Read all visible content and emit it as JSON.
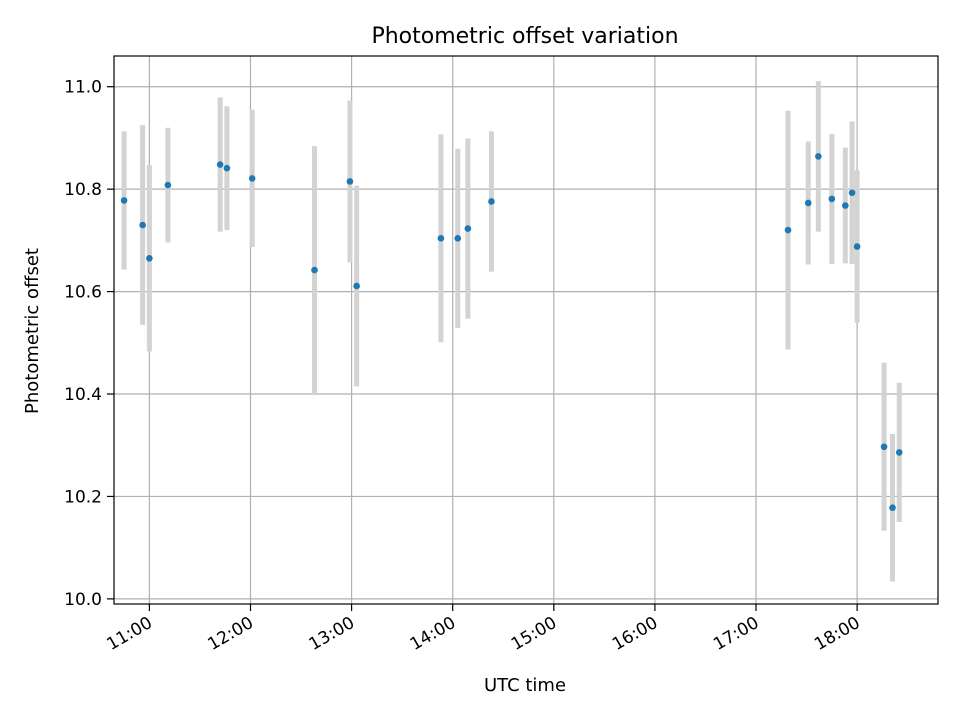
{
  "chart_data": {
    "type": "scatter",
    "title": "Photometric offset variation",
    "xlabel": "UTC time",
    "ylabel": "Photometric offset",
    "x_unit": "UTC time (HH:MM)",
    "xlim": [
      "10:39",
      "18:48"
    ],
    "ylim": [
      9.99,
      11.06
    ],
    "xticks": [
      "11:00",
      "12:00",
      "13:00",
      "14:00",
      "15:00",
      "16:00",
      "17:00",
      "18:00"
    ],
    "yticks": [
      10.0,
      10.2,
      10.4,
      10.6,
      10.8,
      11.0
    ],
    "ytick_labels": [
      "10.0",
      "10.2",
      "10.4",
      "10.6",
      "10.8",
      "11.0"
    ],
    "grid": true,
    "colors": {
      "point": "#1f77b4",
      "errorbar": "#d3d3d3",
      "grid": "#b0b0b0",
      "axes": "#000000"
    },
    "points": [
      {
        "x": "10:45",
        "y": 10.778,
        "err": 0.135
      },
      {
        "x": "10:56",
        "y": 10.73,
        "err": 0.195
      },
      {
        "x": "11:00",
        "y": 10.665,
        "err": 0.182
      },
      {
        "x": "11:11",
        "y": 10.808,
        "err": 0.112
      },
      {
        "x": "11:42",
        "y": 10.848,
        "err": 0.131
      },
      {
        "x": "11:46",
        "y": 10.841,
        "err": 0.121
      },
      {
        "x": "12:01",
        "y": 10.821,
        "err": 0.134
      },
      {
        "x": "12:38",
        "y": 10.642,
        "err": 0.242
      },
      {
        "x": "12:59",
        "y": 10.815,
        "err": 0.158
      },
      {
        "x": "13:03",
        "y": 10.611,
        "err": 0.196
      },
      {
        "x": "13:53",
        "y": 10.704,
        "err": 0.203
      },
      {
        "x": "14:03",
        "y": 10.704,
        "err": 0.175
      },
      {
        "x": "14:09",
        "y": 10.723,
        "err": 0.176
      },
      {
        "x": "14:23",
        "y": 10.776,
        "err": 0.137
      },
      {
        "x": "17:19",
        "y": 10.72,
        "err": 0.233
      },
      {
        "x": "17:31",
        "y": 10.773,
        "err": 0.12
      },
      {
        "x": "17:37",
        "y": 10.864,
        "err": 0.147
      },
      {
        "x": "17:45",
        "y": 10.781,
        "err": 0.127
      },
      {
        "x": "17:53",
        "y": 10.768,
        "err": 0.113
      },
      {
        "x": "17:57",
        "y": 10.793,
        "err": 0.139
      },
      {
        "x": "18:00",
        "y": 10.688,
        "err": 0.149
      },
      {
        "x": "18:16",
        "y": 10.297,
        "err": 0.164
      },
      {
        "x": "18:21",
        "y": 10.178,
        "err": 0.144
      },
      {
        "x": "18:25",
        "y": 10.286,
        "err": 0.136
      }
    ]
  }
}
